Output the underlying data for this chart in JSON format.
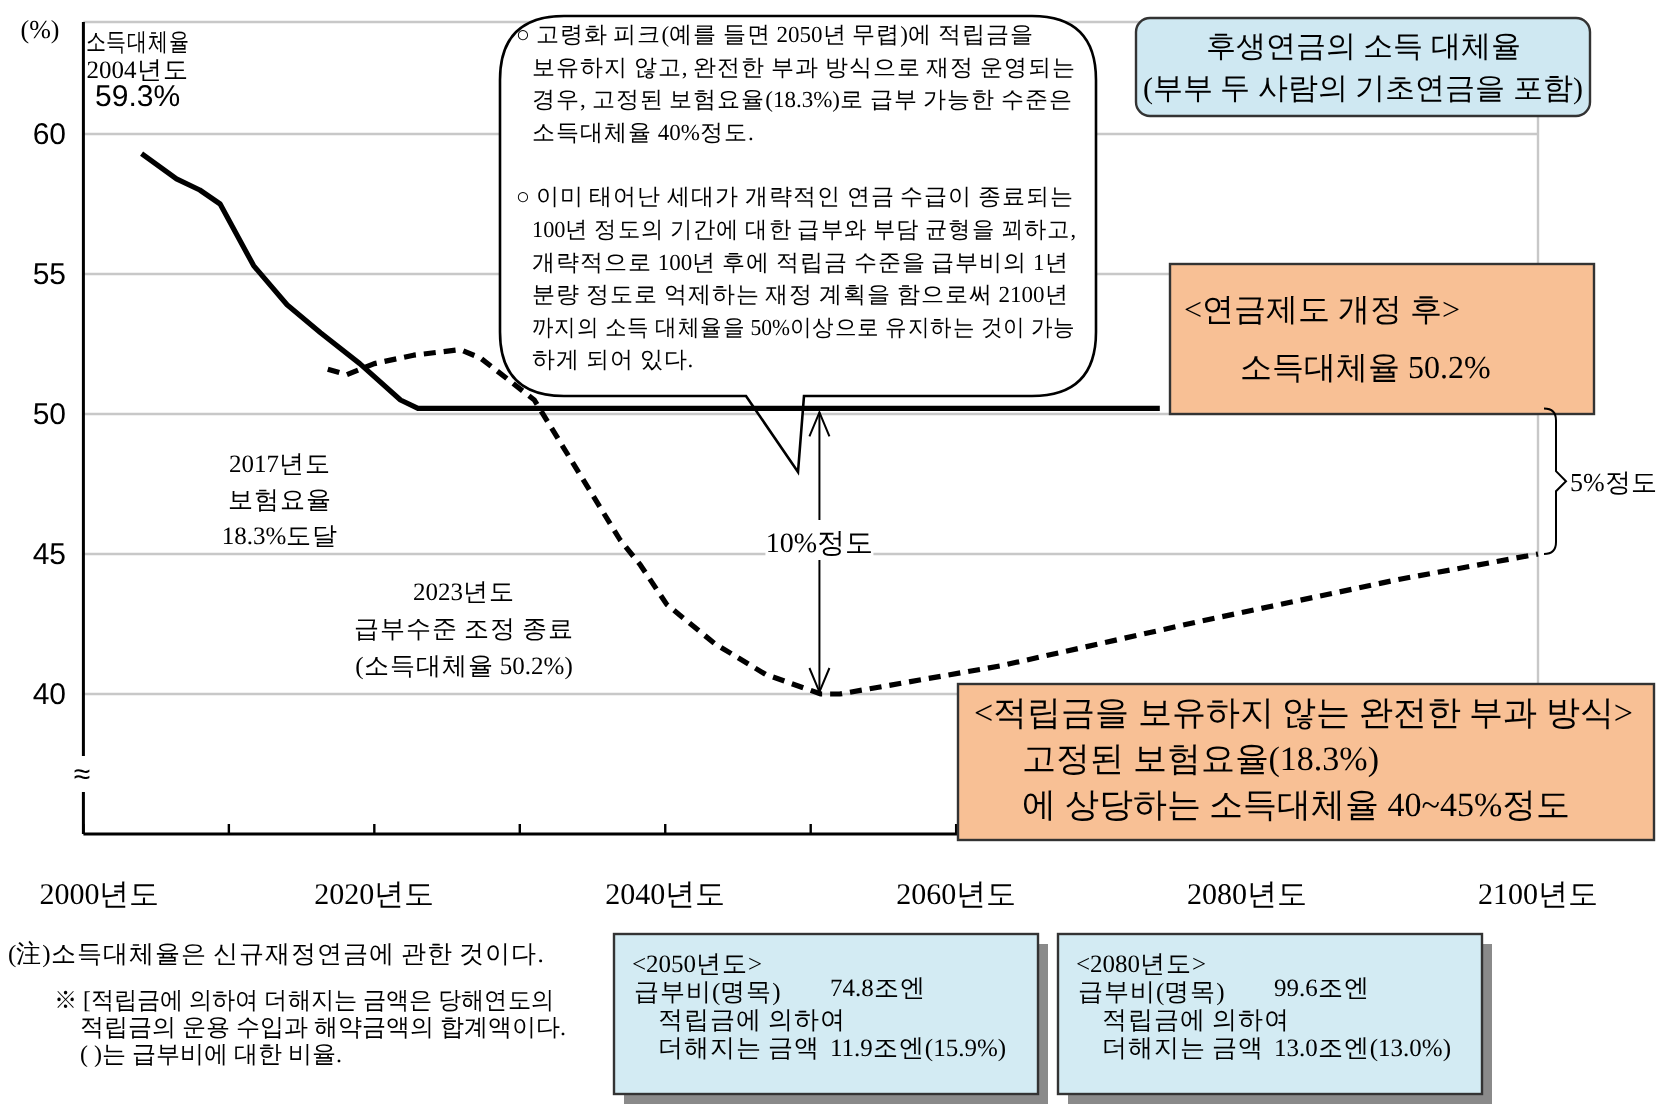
{
  "chart_data": {
    "type": "line",
    "title": "후생연금의 소득 대체율\n(부부 두 사람의 기초연금을 포함)",
    "ylabel": "(%)",
    "xlim": [
      2000,
      2100
    ],
    "xticks": [
      {
        "value": 2000,
        "label": "2000년도"
      },
      {
        "value": 2010,
        "label": null
      },
      {
        "value": 2020,
        "label": "2020년도"
      },
      {
        "value": 2030,
        "label": null
      },
      {
        "value": 2040,
        "label": "2040년도"
      },
      {
        "value": 2050,
        "label": null
      },
      {
        "value": 2060,
        "label": "2060년도"
      },
      {
        "value": 2070,
        "label": null
      },
      {
        "value": 2080,
        "label": "2080년도"
      },
      {
        "value": 2090,
        "label": null
      },
      {
        "value": 2100,
        "label": "2100년도"
      }
    ],
    "ylim": [
      35,
      64
    ],
    "yticks": [
      40,
      45,
      50,
      55,
      60
    ],
    "grid": "y",
    "series": [
      {
        "color": "#000000",
        "line_style": "solid",
        "x": [
          2004,
          2006.4,
          2008,
          2009.4,
          2011.7,
          2014,
          2016.3,
          2019,
          2021.8,
          2023,
          2074
        ],
        "values": [
          59.3,
          58.4,
          58.0,
          57.5,
          55.3,
          53.9,
          52.9,
          51.8,
          50.5,
          50.2,
          50.2
        ]
      },
      {
        "color": "#000000",
        "line_style": "dashed",
        "x": [
          2016.8,
          2018.1,
          2020,
          2022.7,
          2025.9,
          2027.3,
          2031,
          2036.9,
          2038.3,
          2040.1,
          2043.4,
          2046.9,
          2050.7,
          2052,
          2063,
          2076.8,
          2090.5,
          2100
        ],
        "values": [
          51.6,
          51.4,
          51.8,
          52.1,
          52.3,
          52.0,
          50.5,
          45.5,
          44.6,
          43.2,
          41.8,
          40.7,
          40.0,
          40.0,
          41.0,
          42.6,
          44.1,
          45.0
        ]
      }
    ],
    "annotations": [
      {
        "text": "소득대체율\n2004년도\n59.3%",
        "x": 2004,
        "y": 59.3
      },
      "2017년도\n보험요율\n18.3%도달",
      "2023년도\n급부수준 조정 종료\n(소득대체율 50.2%)",
      "○ 고령화 피크(예를 들면 2050년 무렵)에 적립금을\n보유하지 않고, 완전한 부과 방식으로 재정 운영되는\n경우, 고정된 보험요율(18.3%)로 급부 가능한 수준은\n소득대체율 40%정도.\n\n○ 이미 태어난 세대가 개략적인 연금 수급이 종료되는\n100년 정도의 기간에 대한 급부와 부담 균형을 꾀하고,\n개략적으로 100년 후에 적립금 수준을 급부비의 1년\n분량 정도로 억제하는 재정 계획을 함으로써 2100년\n까지의 소득 대체율을 50%이상으로 유지하는 것이 가능\n하게 되어 있다.",
      "<연금제도 개정 후>\n소득대체율 50.2%",
      {
        "text": "10%정도",
        "x": 2050.6,
        "y": 40
      },
      "5%정도",
      "<적립금을 보유하지 않는 완전한 부과 방식>\n고정된 보험요율(18.3%)\n에 상당하는 소득대체율 40~45%정도",
      "≈",
      "(注)소득대체율은 신규재정연금에 관한 것이다.",
      "※ [적립금에 의하여 더해지는 금액은 당해연도의\n적립금의 운용 수입과 해약금액의 합계액이다.\n(   )는 급부비에 대한 비율.",
      "<2050년도>\n급부비(명목)\t74.8조엔\n적립금에 의하여\n더해지는 금액\t11.9조엔(15.9%)",
      "<2080년도>\n급부비(명목)\t99.6조엔\n적립금에 의하여\n더해지는 금액\t13.0조엔(13.0%)"
    ]
  }
}
